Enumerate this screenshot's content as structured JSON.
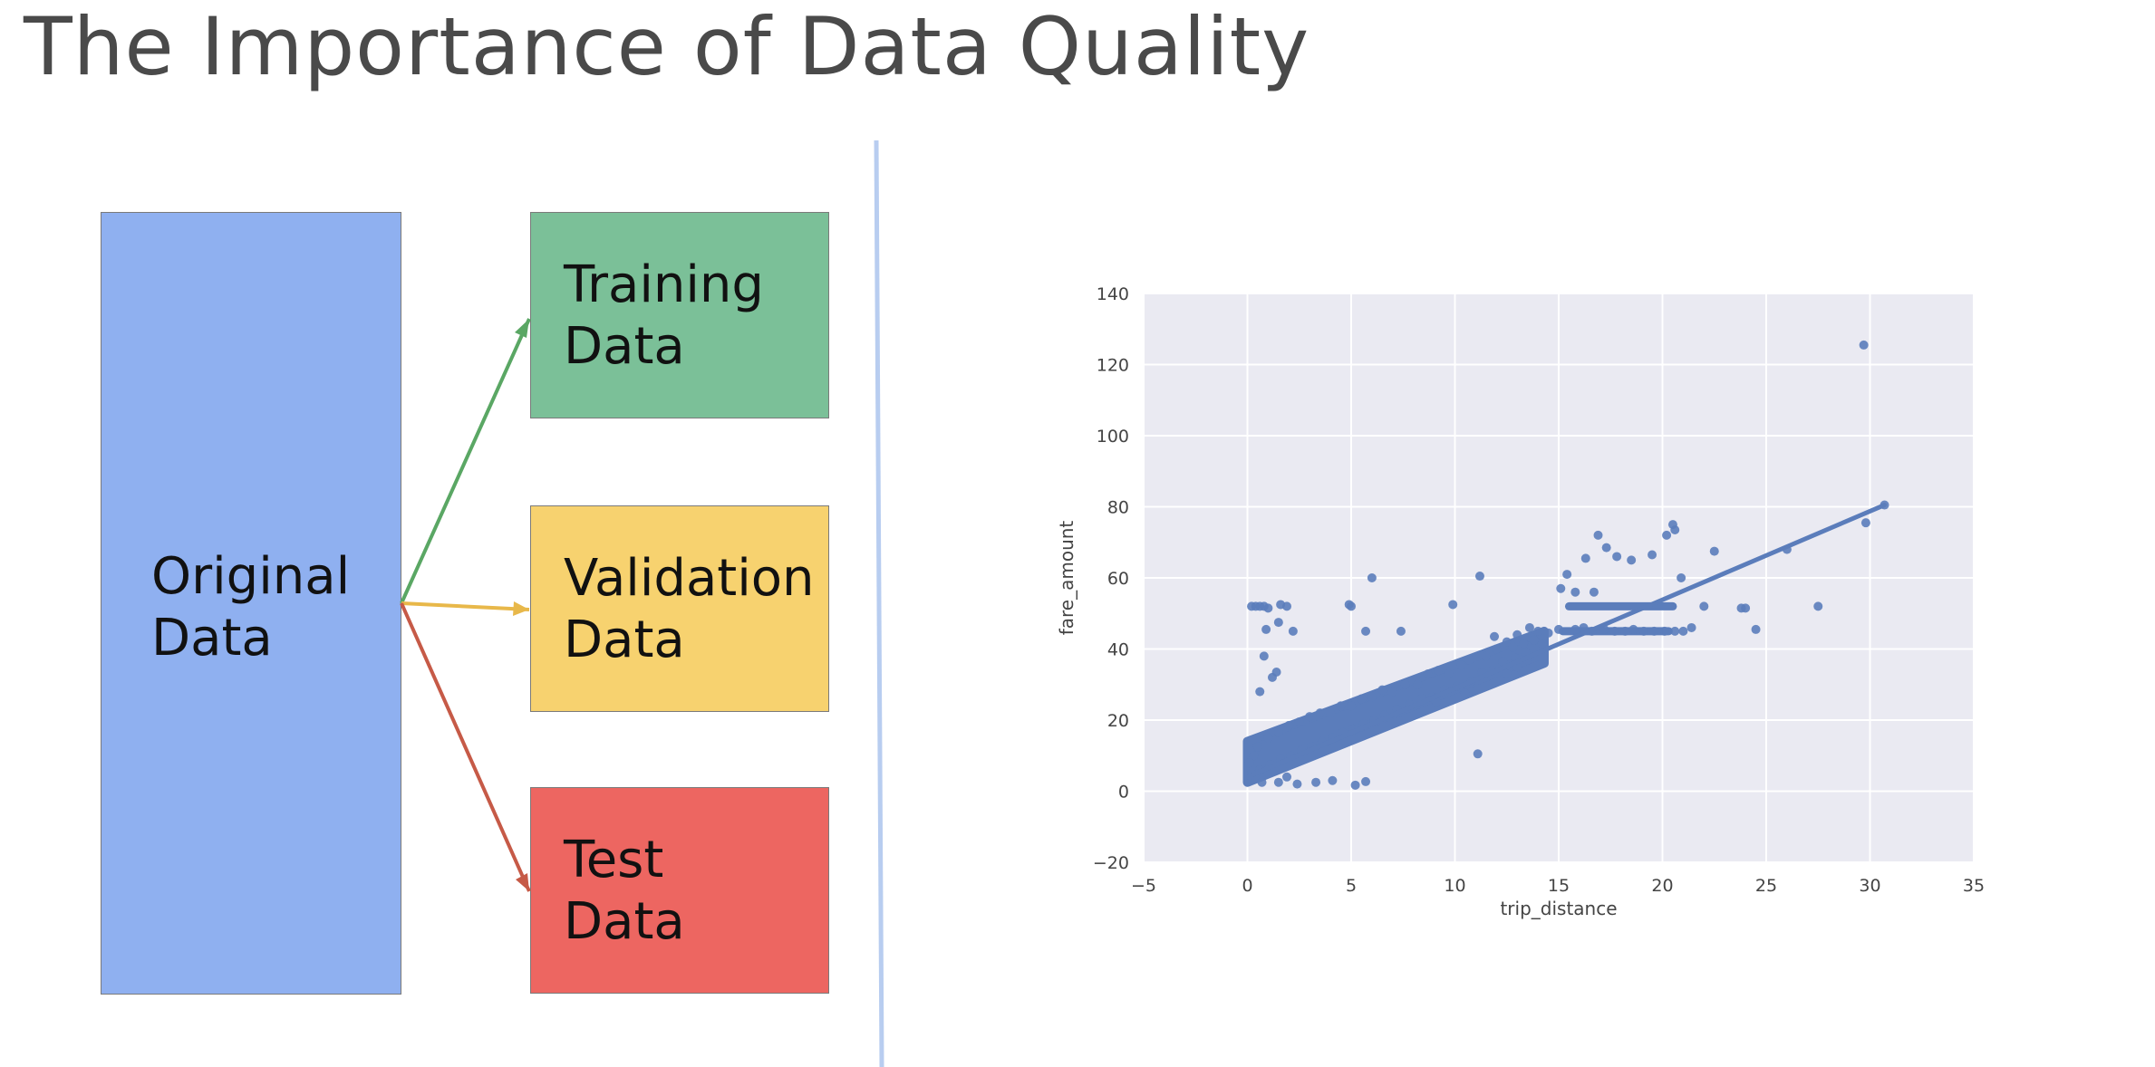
{
  "title": "The Importance of Data Quality",
  "diagram": {
    "original": "Original\nData",
    "training": "Training\nData",
    "validation": "Validation\nData",
    "test": "Test\nData",
    "colors": {
      "original": "#8fb0f0",
      "training": "#7bc098",
      "validation": "#f7d26f",
      "test": "#ed6661",
      "arrow_training": "#5aa764",
      "arrow_validation": "#e8b84a",
      "arrow_test": "#c65a47",
      "divider": "#b8cdf0"
    }
  },
  "chart_data": {
    "type": "scatter",
    "title": "",
    "xlabel": "trip_distance",
    "ylabel": "fare_amount",
    "xlim": [
      -5,
      35
    ],
    "ylim": [
      -20,
      140
    ],
    "xticks": [
      "−5",
      "0",
      "5",
      "10",
      "15",
      "20",
      "25",
      "30",
      "35"
    ],
    "yticks": [
      "−20",
      "0",
      "20",
      "40",
      "60",
      "80",
      "100",
      "120",
      "140"
    ],
    "grid": true,
    "point_color": "#5b7dbb",
    "background": "#eaeaf2",
    "points": [
      [
        29.7,
        125.5
      ],
      [
        29.8,
        75.5
      ],
      [
        30.7,
        80.5
      ],
      [
        26,
        68
      ],
      [
        27.5,
        52
      ],
      [
        24,
        51.5
      ],
      [
        23.8,
        51.5
      ],
      [
        22.5,
        67.5
      ],
      [
        20.6,
        73.5
      ],
      [
        20.5,
        75
      ],
      [
        20.2,
        72
      ],
      [
        20.9,
        60
      ],
      [
        22,
        52
      ],
      [
        21.4,
        46
      ],
      [
        21,
        45
      ],
      [
        24.5,
        45.5
      ],
      [
        16.9,
        72
      ],
      [
        17.3,
        68.5
      ],
      [
        17.8,
        66
      ],
      [
        18.5,
        65
      ],
      [
        19.5,
        66.5
      ],
      [
        16.3,
        65.5
      ],
      [
        15.4,
        61
      ],
      [
        16.7,
        56
      ],
      [
        15.8,
        56
      ],
      [
        15.1,
        57
      ],
      [
        11.2,
        60.5
      ],
      [
        9.9,
        52.5
      ],
      [
        6,
        60
      ],
      [
        5,
        52
      ],
      [
        4.9,
        52.5
      ],
      [
        1.9,
        52
      ],
      [
        1.6,
        52.5
      ],
      [
        1,
        51.5
      ],
      [
        0.6,
        52
      ],
      [
        0.2,
        52
      ],
      [
        0.4,
        52
      ],
      [
        0.8,
        52
      ],
      [
        0.9,
        45.5
      ],
      [
        1.5,
        47.5
      ],
      [
        2.2,
        45
      ],
      [
        0.8,
        38
      ],
      [
        1.4,
        33.5
      ],
      [
        1.2,
        32
      ],
      [
        0.6,
        28
      ],
      [
        5.7,
        45
      ],
      [
        7.4,
        45
      ],
      [
        11.1,
        10.5
      ],
      [
        2.4,
        2
      ],
      [
        3.3,
        2.5
      ],
      [
        4.1,
        3
      ],
      [
        5.2,
        1.7
      ],
      [
        5.7,
        2.7
      ],
      [
        1.5,
        2.5
      ],
      [
        1.9,
        4
      ],
      [
        15.8,
        45.5
      ],
      [
        16.2,
        46
      ],
      [
        16.6,
        45
      ],
      [
        17.2,
        45.5
      ],
      [
        17.7,
        45
      ],
      [
        18.2,
        45
      ],
      [
        18.6,
        45.5
      ],
      [
        19.1,
        45
      ],
      [
        19.6,
        45
      ],
      [
        20.1,
        45
      ],
      [
        20.6,
        45
      ],
      [
        15,
        45.5
      ],
      [
        14.5,
        44.5
      ],
      [
        14,
        45
      ],
      [
        13.6,
        46
      ],
      [
        12.5,
        42
      ],
      [
        13,
        44
      ],
      [
        12,
        40
      ],
      [
        12.8,
        40.5
      ],
      [
        11.5,
        38
      ],
      [
        13.4,
        39
      ],
      [
        11.9,
        43.5
      ],
      [
        10.7,
        37
      ],
      [
        10.3,
        35.5
      ],
      [
        9.7,
        33
      ],
      [
        9.2,
        34
      ],
      [
        8.7,
        33
      ],
      [
        8.2,
        30
      ],
      [
        7.6,
        30
      ],
      [
        7,
        28
      ],
      [
        6.5,
        28.5
      ],
      [
        6,
        26.5
      ],
      [
        5.5,
        26
      ],
      [
        5,
        24
      ],
      [
        4.5,
        24
      ],
      [
        4,
        22
      ],
      [
        3.5,
        22
      ],
      [
        3,
        21
      ],
      [
        2.5,
        19.5
      ],
      [
        2,
        18.5
      ],
      [
        1.5,
        16.5
      ],
      [
        1,
        15
      ],
      [
        0.5,
        12.5
      ],
      [
        0.3,
        10
      ],
      [
        0.1,
        8
      ],
      [
        0.2,
        5
      ],
      [
        0.4,
        3.5
      ],
      [
        0.7,
        2.5
      ],
      [
        11.8,
        34
      ],
      [
        12.3,
        36.5
      ],
      [
        12.9,
        37.5
      ],
      [
        13.3,
        41.5
      ],
      [
        14.2,
        41.5
      ],
      [
        13.8,
        42.5
      ],
      [
        11.3,
        33.5
      ],
      [
        10.8,
        31
      ],
      [
        10.1,
        29.5
      ],
      [
        9.5,
        28.5
      ],
      [
        8.9,
        26.5
      ],
      [
        8.4,
        26
      ],
      [
        7.8,
        24.5
      ],
      [
        7.2,
        23
      ],
      [
        6.6,
        21.5
      ],
      [
        6.1,
        20
      ],
      [
        5.6,
        19
      ],
      [
        5.1,
        17.5
      ],
      [
        4.6,
        16.5
      ],
      [
        4.1,
        15
      ],
      [
        3.6,
        14
      ],
      [
        3.1,
        12.5
      ],
      [
        2.6,
        11.5
      ],
      [
        2.1,
        10
      ],
      [
        1.6,
        9
      ],
      [
        1.1,
        7.5
      ],
      [
        0.6,
        6
      ],
      [
        12.5,
        33
      ],
      [
        13,
        35
      ],
      [
        13.5,
        37
      ],
      [
        10.5,
        27.5
      ],
      [
        9.1,
        25
      ]
    ],
    "dense_band": {
      "x_from": 0,
      "x_to": 14.3,
      "y_low_start": 2.5,
      "y_low_end": 36,
      "y_high_start": 14,
      "y_high_end": 45
    },
    "horizontal_clusters": [
      {
        "y": 52,
        "x_from": 15.5,
        "x_to": 20.5
      },
      {
        "y": 45,
        "x_from": 15.2,
        "x_to": 20.3
      }
    ],
    "regression": {
      "x1": 0,
      "y1": 4,
      "x2": 30.7,
      "y2": 80.5
    }
  }
}
